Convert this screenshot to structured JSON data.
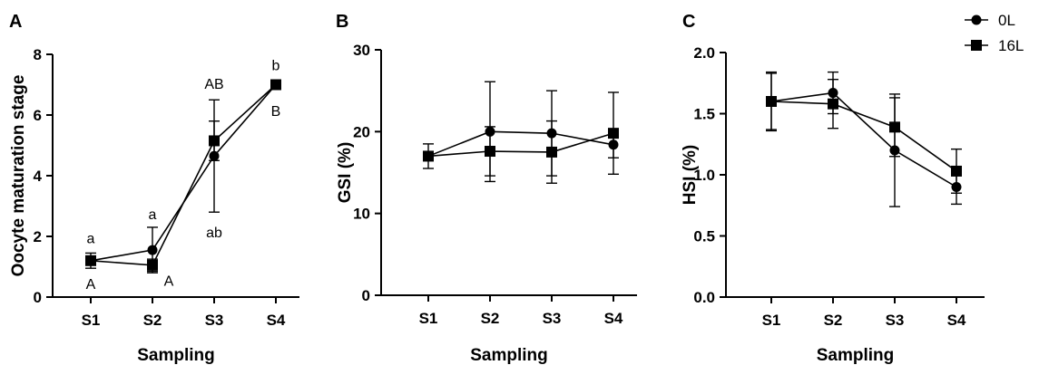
{
  "legend": [
    {
      "label": "0L",
      "marker": "circle"
    },
    {
      "label": "16L",
      "marker": "square"
    }
  ],
  "chart_data": [
    {
      "panel": "A",
      "type": "line",
      "xlabel": "Sampling",
      "ylabel": "Oocyte maturation stage",
      "categories": [
        "S1",
        "S2",
        "S3",
        "S4"
      ],
      "ylim": [
        0,
        8
      ],
      "yticks": [
        0,
        2,
        4,
        6,
        8
      ],
      "series": [
        {
          "name": "0L",
          "marker": "circle",
          "values": [
            1.2,
            1.55,
            4.65,
            7.0
          ],
          "errors": [
            0.25,
            0.75,
            1.85,
            0.0
          ]
        },
        {
          "name": "16L",
          "marker": "square",
          "values": [
            1.2,
            1.05,
            5.15,
            7.0
          ],
          "errors": [
            0.0,
            0.2,
            0.65,
            0.0
          ]
        }
      ],
      "annotations": [
        {
          "text": "a",
          "x": "S1",
          "y": 1.95
        },
        {
          "text": "A",
          "x": "S1",
          "y": 0.45
        },
        {
          "text": "a",
          "x": "S2",
          "y": 2.75
        },
        {
          "text": "A",
          "x": "S2",
          "y": 0.55
        },
        {
          "text": "AB",
          "x": "S3",
          "y": 7.05
        },
        {
          "text": "ab",
          "x": "S3",
          "y": 2.15
        },
        {
          "text": "b",
          "x": "S4",
          "y": 7.65
        },
        {
          "text": "B",
          "x": "S4",
          "y": 6.15
        }
      ]
    },
    {
      "panel": "B",
      "type": "line",
      "xlabel": "Sampling",
      "ylabel": "GSI (%)",
      "categories": [
        "S1",
        "S2",
        "S3",
        "S4"
      ],
      "ylim": [
        0,
        30
      ],
      "yticks": [
        0,
        10,
        20,
        30
      ],
      "series": [
        {
          "name": "0L",
          "marker": "circle",
          "values": [
            17.0,
            20.0,
            19.8,
            18.4
          ],
          "errors": [
            1.5,
            6.1,
            5.2,
            1.6
          ]
        },
        {
          "name": "16L",
          "marker": "square",
          "values": [
            17.0,
            17.6,
            17.5,
            19.8
          ],
          "errors": [
            0.0,
            3.0,
            3.8,
            5.0
          ]
        }
      ]
    },
    {
      "panel": "C",
      "type": "line",
      "xlabel": "Sampling",
      "ylabel": "HSI (%)",
      "categories": [
        "S1",
        "S2",
        "S3",
        "S4"
      ],
      "ylim": [
        0,
        2
      ],
      "yticks": [
        "0.0",
        "0.5",
        "1.0",
        "1.5",
        "2.0"
      ],
      "series": [
        {
          "name": "0L",
          "marker": "circle",
          "values": [
            1.6,
            1.67,
            1.2,
            0.9
          ],
          "errors": [
            0.24,
            0.17,
            0.46,
            0.14
          ]
        },
        {
          "name": "16L",
          "marker": "square",
          "values": [
            1.6,
            1.58,
            1.39,
            1.03
          ],
          "errors": [
            0.23,
            0.2,
            0.24,
            0.18
          ]
        }
      ]
    }
  ]
}
